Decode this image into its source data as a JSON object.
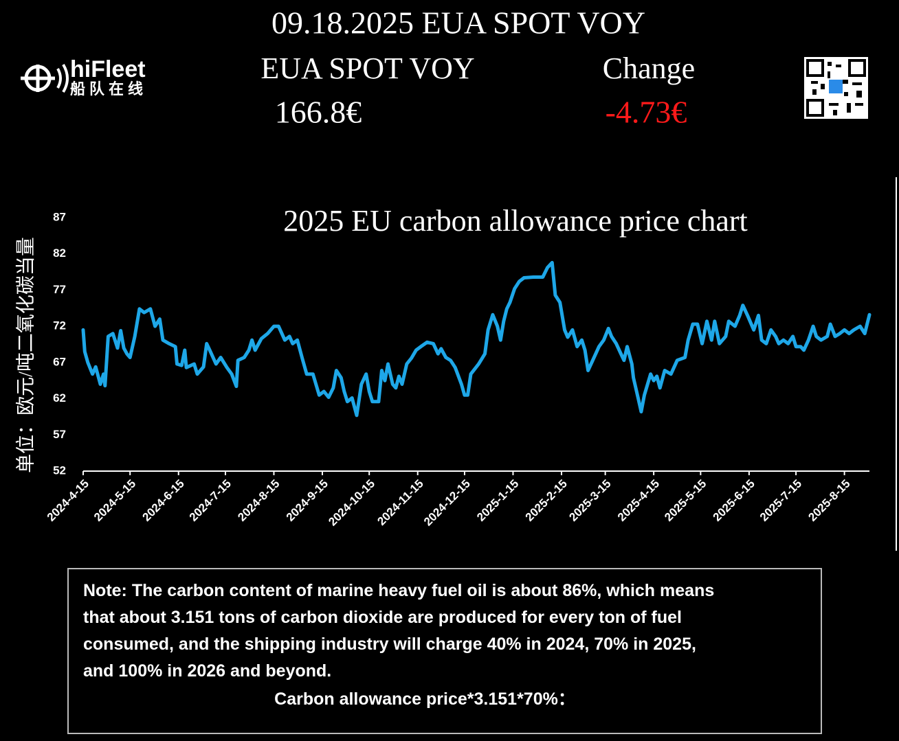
{
  "header": {
    "title": "09.18.2025 EUA SPOT VOY",
    "price_label": "EUA SPOT VOY",
    "change_label": "Change",
    "price": "166.8€",
    "change": "-4.73€"
  },
  "logo": {
    "name": "hiFleet",
    "subtitle": "船队在线"
  },
  "chart_data": {
    "type": "line",
    "title": "2025 EU carbon allowance price chart",
    "y_label": "单位：欧元/吨二氧化碳当量",
    "color": "#1ea7e8",
    "x": [
      "2024-4-15",
      "2024-4-16",
      "2024-4-18",
      "2024-4-21",
      "2024-4-23",
      "2024-4-26",
      "2024-4-28",
      "2024-4-29",
      "2024-5-1",
      "2024-5-4",
      "2024-5-7",
      "2024-5-9",
      "2024-5-11",
      "2024-5-13",
      "2024-5-15",
      "2024-5-18",
      "2024-5-21",
      "2024-5-24",
      "2024-5-28",
      "2024-5-31",
      "2024-6-3",
      "2024-6-5",
      "2024-6-9",
      "2024-6-13",
      "2024-6-14",
      "2024-6-17",
      "2024-6-19",
      "2024-6-20",
      "2024-6-25",
      "2024-6-27",
      "2024-7-1",
      "2024-7-3",
      "2024-7-5",
      "2024-7-9",
      "2024-7-12",
      "2024-7-16",
      "2024-7-19",
      "2024-7-22",
      "2024-7-23",
      "2024-7-27",
      "2024-7-30",
      "2024-8-1",
      "2024-8-3",
      "2024-8-7",
      "2024-8-11",
      "2024-8-15",
      "2024-8-18",
      "2024-8-22",
      "2024-8-25",
      "2024-8-27",
      "2024-8-30",
      "2024-9-2",
      "2024-9-5",
      "2024-9-9",
      "2024-9-13",
      "2024-9-16",
      "2024-9-19",
      "2024-9-22",
      "2024-9-24",
      "2024-9-27",
      "2024-9-29",
      "2024-10-1",
      "2024-10-4",
      "2024-10-7",
      "2024-10-10",
      "2024-10-13",
      "2024-10-15",
      "2024-10-17",
      "2024-10-21",
      "2024-10-23",
      "2024-10-25",
      "2024-10-27",
      "2024-10-30",
      "2024-11-1",
      "2024-11-3",
      "2024-11-5",
      "2024-11-8",
      "2024-11-11",
      "2024-11-14",
      "2024-11-17",
      "2024-11-21",
      "2024-11-25",
      "2024-11-28",
      "2024-11-30",
      "2024-12-3",
      "2024-12-6",
      "2024-12-9",
      "2024-12-13",
      "2024-12-15",
      "2024-12-17",
      "2024-12-19",
      "2024-12-24",
      "2024-12-28",
      "2024-12-30",
      "2025-1-2",
      "2025-1-5",
      "2025-1-7",
      "2025-1-9",
      "2025-1-11",
      "2025-1-13",
      "2025-1-16",
      "2025-1-19",
      "2025-1-22",
      "2025-1-28",
      "2025-2-3",
      "2025-2-6",
      "2025-2-9",
      "2025-2-11",
      "2025-2-14",
      "2025-2-17",
      "2025-2-19",
      "2025-2-22",
      "2025-2-25",
      "2025-2-28",
      "2025-3-2",
      "2025-3-4",
      "2025-3-7",
      "2025-3-11",
      "2025-3-14",
      "2025-3-17",
      "2025-3-19",
      "2025-3-22",
      "2025-3-25",
      "2025-3-27",
      "2025-3-29",
      "2025-4-1",
      "2025-4-2",
      "2025-4-5",
      "2025-4-7",
      "2025-4-9",
      "2025-4-13",
      "2025-4-15",
      "2025-4-17",
      "2025-4-19",
      "2025-4-22",
      "2025-4-26",
      "2025-4-30",
      "2025-5-5",
      "2025-5-7",
      "2025-5-10",
      "2025-5-13",
      "2025-5-16",
      "2025-5-19",
      "2025-5-22",
      "2025-5-24",
      "2025-5-27",
      "2025-5-31",
      "2025-6-2",
      "2025-6-6",
      "2025-6-9",
      "2025-6-11",
      "2025-6-14",
      "2025-6-18",
      "2025-6-21",
      "2025-6-23",
      "2025-6-26",
      "2025-6-29",
      "2025-7-2",
      "2025-7-4",
      "2025-7-7",
      "2025-7-10",
      "2025-7-13",
      "2025-7-15",
      "2025-7-18",
      "2025-7-20",
      "2025-7-23",
      "2025-7-26",
      "2025-7-28",
      "2025-7-31",
      "2025-8-4",
      "2025-8-6",
      "2025-8-9",
      "2025-8-12",
      "2025-8-15",
      "2025-8-18",
      "2025-8-21",
      "2025-8-25",
      "2025-8-28",
      "2025-8-31"
    ],
    "values": [
      71.5,
      68.5,
      67,
      65.4,
      66.4,
      64,
      65.4,
      63.8,
      70.6,
      71,
      69,
      71.4,
      69,
      68.2,
      67.7,
      70.6,
      74.4,
      73.9,
      74.4,
      72,
      73,
      70.1,
      69.6,
      69.2,
      66.8,
      66.6,
      68.7,
      66.3,
      66.8,
      65.4,
      66.4,
      69.6,
      68.7,
      66.8,
      67.7,
      66.3,
      65.4,
      63.7,
      67.3,
      67.7,
      68.7,
      70.1,
      68.7,
      70.3,
      71,
      72,
      72,
      70.1,
      70.6,
      69.6,
      70.1,
      67.7,
      65.4,
      65.4,
      62.5,
      63,
      62.2,
      63.5,
      65.9,
      64.9,
      63,
      61.6,
      62.1,
      59.7,
      64,
      65.4,
      63,
      61.6,
      61.6,
      65.9,
      64.5,
      66.8,
      64,
      63.5,
      65.1,
      64,
      66.8,
      67.6,
      68.7,
      69.2,
      69.8,
      69.6,
      68.2,
      68.9,
      67.7,
      67.3,
      66.3,
      64,
      62.5,
      62.5,
      65.4,
      66.8,
      68.2,
      71.5,
      73.6,
      72,
      70.1,
      72.7,
      74.4,
      75.3,
      77.2,
      78.2,
      78.7,
      78.8,
      78.8,
      80.1,
      80.8,
      76.3,
      75.3,
      71.5,
      70.5,
      71.5,
      69.2,
      70.1,
      68.7,
      65.9,
      67.3,
      69.2,
      70.1,
      71.7,
      70.6,
      69.6,
      68.2,
      67.3,
      69.2,
      66.8,
      64.9,
      62.1,
      60.2,
      62.5,
      65.4,
      64.5,
      65.1,
      63.5,
      65.9,
      65.4,
      67.3,
      67.7,
      70.1,
      72.3,
      72.3,
      69.6,
      72.7,
      70.1,
      72.7,
      69.6,
      70.6,
      72.7,
      72,
      73.5,
      74.9,
      73.5,
      71.5,
      73.5,
      70.1,
      69.6,
      71.5,
      70.6,
      69.6,
      70.1,
      69.6,
      70.6,
      69.2,
      69.2,
      68.7,
      70.1,
      72,
      70.6,
      70.1,
      70.6,
      72.3,
      70.6,
      71,
      71.5,
      71,
      71.5,
      72,
      71,
      73.6
    ],
    "xlim": [
      "2024-4-15",
      "2025-8-31"
    ],
    "xticks": [
      "2024-4-15",
      "2024-5-15",
      "2024-6-15",
      "2024-7-15",
      "2024-8-15",
      "2024-9-15",
      "2024-10-15",
      "2024-11-15",
      "2024-12-15",
      "2025-1-15",
      "2025-2-15",
      "2025-3-15",
      "2025-4-15",
      "2025-5-15",
      "2025-6-15",
      "2025-7-15",
      "2025-8-15"
    ],
    "ylim": [
      52,
      87
    ],
    "yticks": [
      52,
      57,
      62,
      67,
      72,
      77,
      82,
      87
    ],
    "grid": false
  },
  "note": {
    "lines": [
      "Note: The carbon content of marine heavy fuel oil is about 86%, which means",
      "that about 3.151 tons of carbon dioxide are produced for every ton of fuel",
      "consumed, and the shipping industry will charge 40% in 2024, 70% in 2025,",
      "and 100% in 2026 and beyond."
    ],
    "formula": "Carbon allowance price*3.151*70%："
  }
}
